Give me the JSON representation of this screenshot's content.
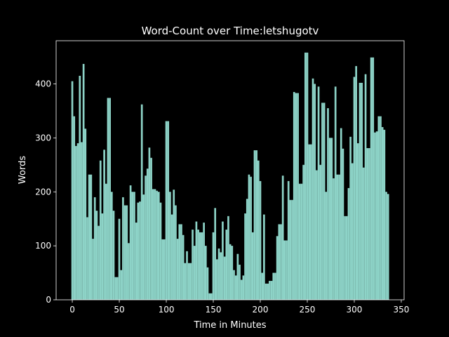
{
  "chart_data": {
    "type": "bar",
    "title": "Word-Count over Time:letshugotv",
    "x_label": "Time in Minutes",
    "y_label": "Words",
    "color": "#8dd3c7",
    "bar_width": 2,
    "x": [
      0,
      2,
      4,
      6,
      8,
      10,
      12,
      14,
      16,
      18,
      20,
      22,
      24,
      26,
      28,
      30,
      32,
      34,
      36,
      38,
      40,
      42,
      44,
      46,
      48,
      50,
      52,
      54,
      56,
      58,
      60,
      62,
      64,
      66,
      68,
      70,
      72,
      74,
      76,
      78,
      80,
      82,
      84,
      86,
      88,
      90,
      92,
      94,
      96,
      98,
      100,
      102,
      104,
      106,
      108,
      110,
      112,
      114,
      116,
      118,
      120,
      122,
      124,
      126,
      128,
      130,
      132,
      134,
      136,
      138,
      140,
      142,
      144,
      146,
      148,
      150,
      152,
      154,
      156,
      158,
      160,
      162,
      164,
      166,
      168,
      170,
      172,
      174,
      176,
      178,
      180,
      182,
      184,
      186,
      188,
      190,
      192,
      194,
      196,
      198,
      200,
      202,
      204,
      206,
      208,
      210,
      212,
      214,
      216,
      218,
      220,
      222,
      224,
      226,
      228,
      230,
      232,
      234,
      236,
      238,
      240,
      242,
      244,
      246,
      248,
      250,
      252,
      254,
      256,
      258,
      260,
      262,
      264,
      266,
      268,
      270,
      272,
      274,
      276,
      278,
      280,
      282,
      284,
      286,
      288,
      290,
      292,
      294,
      296,
      298,
      300,
      302,
      304,
      306,
      308,
      310,
      312,
      314,
      316,
      318,
      320,
      322,
      324,
      326,
      328,
      330,
      332,
      334,
      336
    ],
    "values": [
      405,
      340,
      285,
      290,
      415,
      292,
      437,
      317,
      153,
      232,
      232,
      113,
      190,
      165,
      137,
      258,
      160,
      278,
      215,
      374,
      374,
      200,
      165,
      42,
      42,
      150,
      55,
      190,
      175,
      175,
      105,
      212,
      200,
      200,
      143,
      180,
      182,
      362,
      195,
      230,
      243,
      282,
      263,
      205,
      205,
      202,
      200,
      180,
      112,
      112,
      331,
      331,
      200,
      158,
      204,
      175,
      113,
      140,
      140,
      120,
      68,
      90,
      68,
      68,
      130,
      100,
      145,
      130,
      125,
      125,
      143,
      100,
      60,
      12,
      12,
      125,
      170,
      75,
      95,
      88,
      145,
      80,
      130,
      155,
      103,
      100,
      55,
      45,
      85,
      65,
      37,
      45,
      160,
      187,
      232,
      228,
      125,
      277,
      277,
      258,
      220,
      50,
      158,
      30,
      30,
      35,
      35,
      50,
      50,
      118,
      140,
      140,
      230,
      110,
      110,
      220,
      185,
      185,
      385,
      383,
      383,
      215,
      215,
      250,
      458,
      458,
      288,
      288,
      410,
      400,
      240,
      395,
      250,
      365,
      365,
      200,
      355,
      300,
      300,
      225,
      395,
      232,
      232,
      318,
      280,
      155,
      155,
      207,
      302,
      253,
      413,
      433,
      290,
      402,
      402,
      245,
      418,
      281,
      281,
      449,
      449,
      310,
      312,
      340,
      340,
      320,
      315,
      200,
      196
    ],
    "xlim": [
      -17.2,
      353
    ],
    "ylim": [
      0,
      480
    ],
    "xticks": [
      0,
      50,
      100,
      150,
      200,
      250,
      300,
      350
    ],
    "yticks": [
      0,
      100,
      200,
      300,
      400
    ]
  }
}
